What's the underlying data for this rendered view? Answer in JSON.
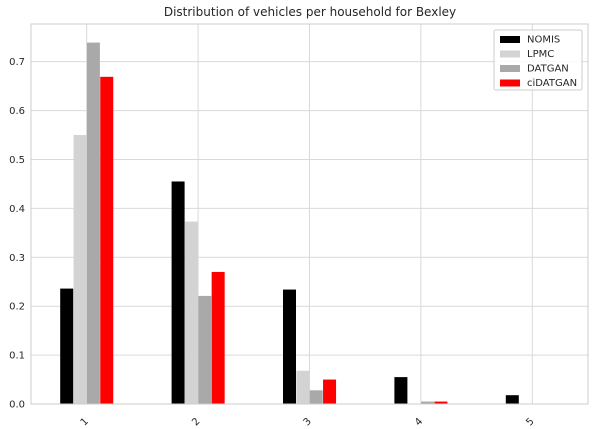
{
  "chart_data": {
    "type": "bar",
    "title": "Distribution of vehicles per household for Bexley",
    "xlabel": "",
    "ylabel": "",
    "categories": [
      "1",
      "2",
      "3",
      "4",
      "5"
    ],
    "series": [
      {
        "name": "NOMIS",
        "color": "#000000",
        "values": [
          0.236,
          0.455,
          0.234,
          0.055,
          0.018
        ]
      },
      {
        "name": "LPMC",
        "color": "#d3d3d3",
        "values": [
          0.55,
          0.373,
          0.068,
          0.0,
          0.0
        ]
      },
      {
        "name": "DATGAN",
        "color": "#a9a9a9",
        "values": [
          0.739,
          0.221,
          0.028,
          0.005,
          0.0
        ]
      },
      {
        "name": "ciDATGAN",
        "color": "#ff0000",
        "values": [
          0.669,
          0.27,
          0.05,
          0.005,
          0.0
        ]
      }
    ],
    "ylim": [
      0,
      0.777
    ],
    "yticks": [
      "0.0",
      "0.1",
      "0.2",
      "0.3",
      "0.4",
      "0.5",
      "0.6",
      "0.7"
    ],
    "grid": true,
    "legend_position": "top-right",
    "xtick_rotation": 45
  }
}
